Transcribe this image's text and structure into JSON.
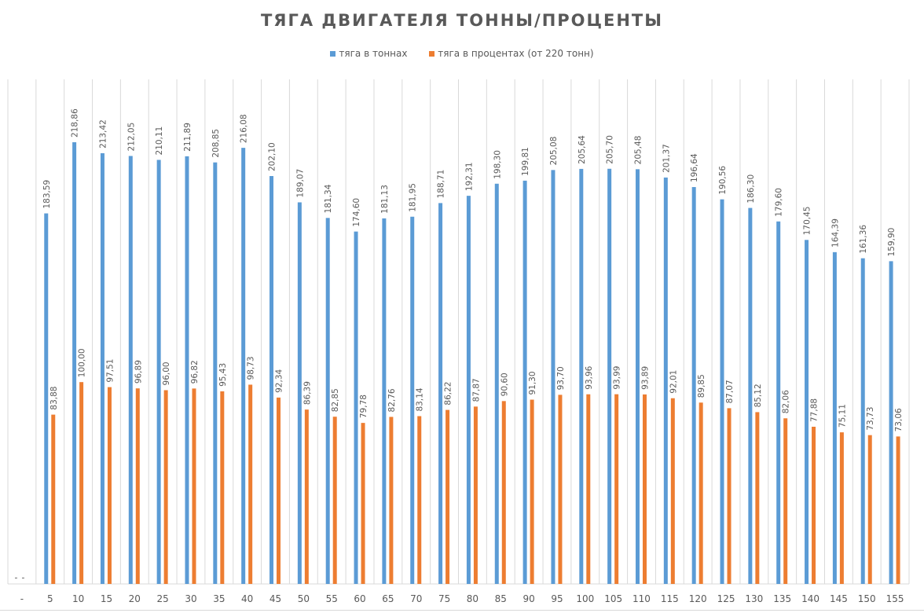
{
  "chart_data": {
    "type": "bar",
    "title": "ТЯГА ДВИГАТЕЛЯ ТОННЫ/ПРОЦЕНТЫ",
    "xlabel": "",
    "ylabel": "",
    "ylim": [
      0,
      250
    ],
    "grid": "vertical",
    "legend_position": "top",
    "categories": [
      "-",
      "5",
      "10",
      "15",
      "20",
      "25",
      "30",
      "35",
      "40",
      "45",
      "50",
      "55",
      "60",
      "65",
      "70",
      "75",
      "80",
      "85",
      "90",
      "95",
      "100",
      "105",
      "110",
      "115",
      "120",
      "125",
      "130",
      "135",
      "140",
      "145",
      "150",
      "155"
    ],
    "series": [
      {
        "name": "тяга в тоннах",
        "color": "#5b9bd5",
        "values": [
          0,
          183.59,
          218.86,
          213.42,
          212.05,
          210.11,
          211.89,
          208.85,
          216.08,
          202.1,
          189.07,
          181.34,
          174.6,
          181.13,
          181.95,
          188.71,
          192.31,
          198.3,
          199.81,
          205.08,
          205.64,
          205.7,
          205.48,
          201.37,
          196.64,
          190.56,
          186.3,
          179.6,
          170.45,
          164.39,
          161.36,
          159.9
        ],
        "labels": [
          "-",
          "183,59",
          "218,86",
          "213,42",
          "212,05",
          "210,11",
          "211,89",
          "208,85",
          "216,08",
          "202,10",
          "189,07",
          "181,34",
          "174,60",
          "181,13",
          "181,95",
          "188,71",
          "192,31",
          "198,30",
          "199,81",
          "205,08",
          "205,64",
          "205,70",
          "205,48",
          "201,37",
          "196,64",
          "190,56",
          "186,30",
          "179,60",
          "170,45",
          "164,39",
          "161,36",
          "159,90"
        ]
      },
      {
        "name": "тяга в процентах (от 220 тонн)",
        "color": "#ed7d31",
        "values": [
          0,
          83.88,
          100.0,
          97.51,
          96.89,
          96.0,
          96.82,
          95.43,
          98.73,
          92.34,
          86.39,
          82.85,
          79.78,
          82.76,
          83.14,
          86.22,
          87.87,
          90.6,
          91.3,
          93.7,
          93.96,
          93.99,
          93.89,
          92.01,
          89.85,
          87.07,
          85.12,
          82.06,
          77.88,
          75.11,
          73.73,
          73.06
        ],
        "labels": [
          "-",
          "83,88",
          "100,00",
          "97,51",
          "96,89",
          "96,00",
          "96,82",
          "95,43",
          "98,73",
          "92,34",
          "86,39",
          "82,85",
          "79,78",
          "82,76",
          "83,14",
          "86,22",
          "87,87",
          "90,60",
          "91,30",
          "93,70",
          "93,96",
          "93,99",
          "93,89",
          "92,01",
          "89,85",
          "87,07",
          "85,12",
          "82,06",
          "77,88",
          "75,11",
          "73,73",
          "73,06"
        ]
      }
    ]
  }
}
